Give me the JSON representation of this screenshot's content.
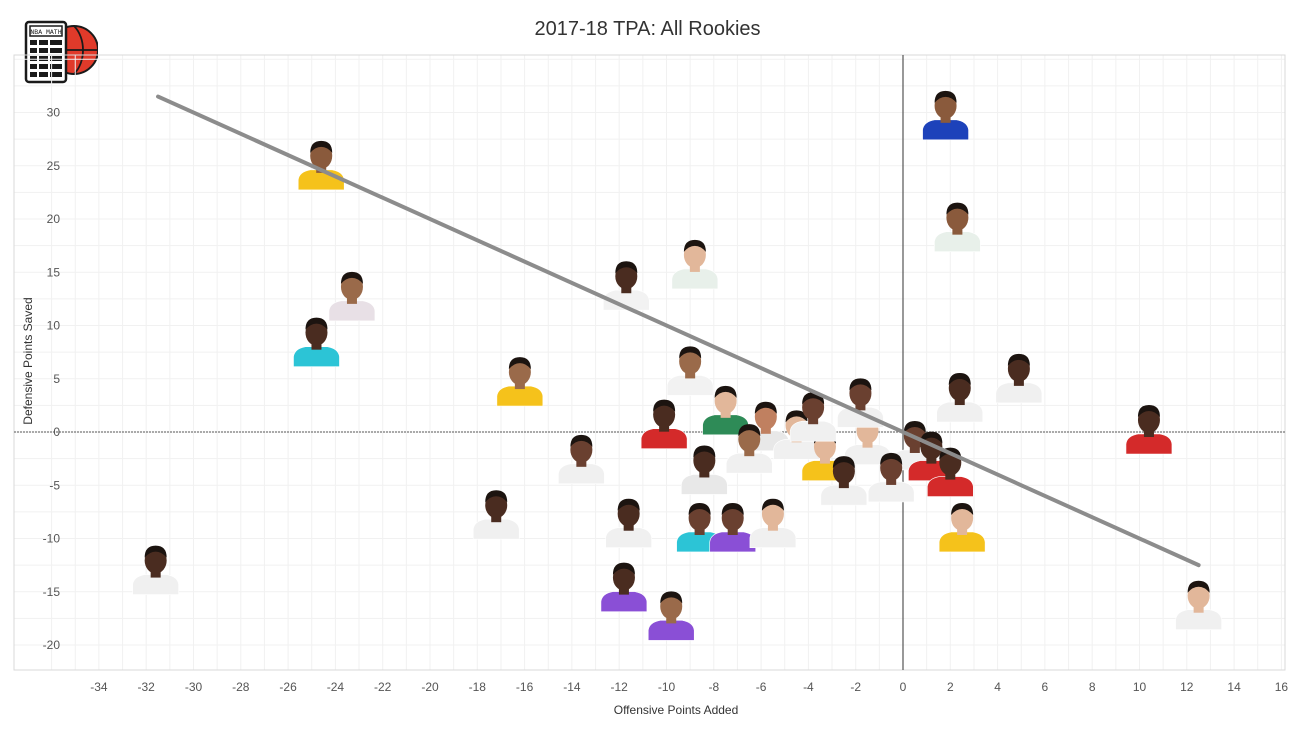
{
  "chart_data": {
    "type": "scatter",
    "title": "2017-18 TPA: All Rookies",
    "xlabel": "Offensive Points Added",
    "ylabel": "Defensive Points Saved",
    "xlim": [
      -36,
      16
    ],
    "ylim": [
      -22,
      35
    ],
    "xticks": [
      -34,
      -32,
      -30,
      -28,
      -26,
      -24,
      -22,
      -20,
      -18,
      -16,
      -14,
      -12,
      -10,
      -8,
      -6,
      -4,
      -2,
      0,
      2,
      4,
      6,
      8,
      10,
      12,
      14,
      16
    ],
    "yticks": [
      30,
      25,
      20,
      15,
      10,
      5,
      0,
      -5,
      -10,
      -15,
      -20
    ],
    "grid": true,
    "marker": "player-headshot",
    "trendline": {
      "x": [
        -31.5,
        12.5
      ],
      "y": [
        31.5,
        -12.5
      ],
      "color": "#8c8c8c"
    },
    "points": [
      {
        "x": 1.8,
        "y": 29.5,
        "jersey": "#1d42ba",
        "skin": "#8a5a3c"
      },
      {
        "x": -24.6,
        "y": 24.8,
        "jersey": "#f5c21b",
        "skin": "#8a5a3c"
      },
      {
        "x": 2.3,
        "y": 19.0,
        "jersey": "#e8f0ea",
        "skin": "#8a5a3c"
      },
      {
        "x": -8.8,
        "y": 15.5,
        "jersey": "#e8f0ea",
        "skin": "#e2b79a"
      },
      {
        "x": -11.7,
        "y": 13.5,
        "jersey": "#f2f2f2",
        "skin": "#4a2c20"
      },
      {
        "x": -23.3,
        "y": 12.5,
        "jersey": "#e8e0e6",
        "skin": "#9a6a4a"
      },
      {
        "x": -24.8,
        "y": 8.2,
        "jersey": "#2cc4d6",
        "skin": "#4a2c20"
      },
      {
        "x": -16.2,
        "y": 4.5,
        "jersey": "#f5c21b",
        "skin": "#9a6a4a"
      },
      {
        "x": 2.4,
        "y": 3.0,
        "jersey": "#f0f0f0",
        "skin": "#4a2c20"
      },
      {
        "x": 4.9,
        "y": 4.8,
        "jersey": "#f0f0f0",
        "skin": "#4a2c20"
      },
      {
        "x": 10.4,
        "y": 0.0,
        "jersey": "#d42a2a",
        "skin": "#4a2c20"
      },
      {
        "x": -9.0,
        "y": 5.5,
        "jersey": "#f2f2f2",
        "skin": "#9a6a4a"
      },
      {
        "x": -10.1,
        "y": 0.5,
        "jersey": "#d42a2a",
        "skin": "#4a2c20"
      },
      {
        "x": -7.5,
        "y": 1.8,
        "jersey": "#2e8b57",
        "skin": "#e2b79a"
      },
      {
        "x": -5.8,
        "y": 0.3,
        "jersey": "#e8e8e8",
        "skin": "#c08060"
      },
      {
        "x": -13.6,
        "y": -2.8,
        "jersey": "#f0f0f0",
        "skin": "#6a4030"
      },
      {
        "x": -8.4,
        "y": -3.8,
        "jersey": "#e8e8e8",
        "skin": "#4a2c20"
      },
      {
        "x": -6.5,
        "y": -1.8,
        "jersey": "#f0f0f0",
        "skin": "#9a6a4a"
      },
      {
        "x": -4.5,
        "y": -0.5,
        "jersey": "#f0f0f0",
        "skin": "#e2b79a"
      },
      {
        "x": -3.3,
        "y": -2.5,
        "jersey": "#f5c21b",
        "skin": "#e2b79a"
      },
      {
        "x": -1.5,
        "y": -1.0,
        "jersey": "#f0f0f0",
        "skin": "#e2b79a"
      },
      {
        "x": -1.8,
        "y": 2.5,
        "jersey": "#f0f0f0",
        "skin": "#6a4030"
      },
      {
        "x": -3.8,
        "y": 1.2,
        "jersey": "#f0f0f0",
        "skin": "#6a4030"
      },
      {
        "x": -2.5,
        "y": -4.8,
        "jersey": "#f0f0f0",
        "skin": "#4a2c20"
      },
      {
        "x": 0.5,
        "y": -1.5,
        "jersey": "#f0f0f0",
        "skin": "#6a4030"
      },
      {
        "x": 1.2,
        "y": -2.5,
        "jersey": "#d42a2a",
        "skin": "#4a2c20"
      },
      {
        "x": 2.0,
        "y": -4.0,
        "jersey": "#d42a2a",
        "skin": "#4a2c20"
      },
      {
        "x": -0.5,
        "y": -4.5,
        "jersey": "#f0f0f0",
        "skin": "#6a4030"
      },
      {
        "x": -17.2,
        "y": -8.0,
        "jersey": "#f0f0f0",
        "skin": "#4a2c20"
      },
      {
        "x": -11.6,
        "y": -8.8,
        "jersey": "#f0f0f0",
        "skin": "#4a2c20"
      },
      {
        "x": -8.6,
        "y": -9.2,
        "jersey": "#2cc4d6",
        "skin": "#6a4030"
      },
      {
        "x": -7.2,
        "y": -9.2,
        "jersey": "#8a4fd6",
        "skin": "#6a4030"
      },
      {
        "x": -5.5,
        "y": -8.8,
        "jersey": "#f0f0f0",
        "skin": "#e2b79a"
      },
      {
        "x": 2.5,
        "y": -9.2,
        "jersey": "#f5c21b",
        "skin": "#e2b79a"
      },
      {
        "x": -31.6,
        "y": -13.2,
        "jersey": "#f0f0f0",
        "skin": "#4a2c20"
      },
      {
        "x": -11.8,
        "y": -14.8,
        "jersey": "#8a4fd6",
        "skin": "#4a2c20"
      },
      {
        "x": -9.8,
        "y": -17.5,
        "jersey": "#8a4fd6",
        "skin": "#9a6a4a"
      },
      {
        "x": 12.5,
        "y": -16.5,
        "jersey": "#f0f0f0",
        "skin": "#e2b79a"
      }
    ]
  },
  "logo": {
    "text": "NBA MATH"
  }
}
